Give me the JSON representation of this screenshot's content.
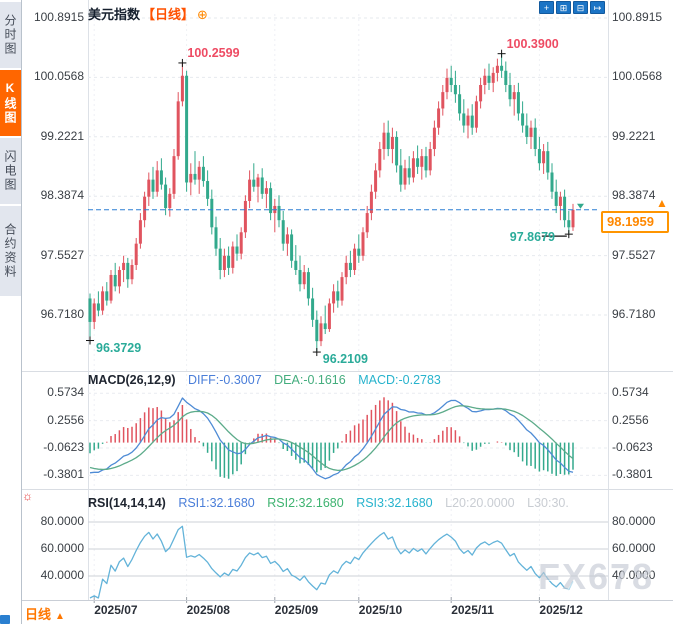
{
  "sidebar": {
    "tabs": [
      {
        "label": "分时图",
        "active": false
      },
      {
        "label": "K线图",
        "active": true
      },
      {
        "label": "闪电图",
        "active": false
      },
      {
        "label": "合约资料",
        "active": false
      }
    ]
  },
  "header": {
    "title": "美元指数",
    "period_tag": "【日线】",
    "add_icon": "⊕"
  },
  "toolbar": {
    "buttons": [
      {
        "name": "crosshair",
        "glyph": "+"
      },
      {
        "name": "zoom-in",
        "glyph": "⊞"
      },
      {
        "name": "zoom-out",
        "glyph": "⊟"
      },
      {
        "name": "exit",
        "glyph": "↦"
      }
    ]
  },
  "price_box": {
    "value": "98.1959"
  },
  "price_arrow": "▲",
  "alert_icon": "☼",
  "bottom_bar": {
    "period_label": "日线",
    "arrow": "▲"
  },
  "watermark": "FX678",
  "macd_header": {
    "name": "MACD(26,12,9)",
    "diff": "DIFF:-0.3007",
    "dea": "DEA:-0.1616",
    "macd": "MACD:-0.2783"
  },
  "rsi_header": {
    "name": "RSI(14,14,14)",
    "rsi1": "RSI1:32.1680",
    "rsi2": "RSI2:32.1680",
    "rsi3": "RSI3:32.1680",
    "l20": "L20:20.0000",
    "l30": "L30:30."
  },
  "chart_data": {
    "type": "candlestick",
    "title": "美元指数 日线",
    "price_axis_labels": [
      "100.8915",
      "100.0568",
      "99.2221",
      "98.3874",
      "97.5527",
      "96.7180"
    ],
    "macd_axis_labels": [
      "0.5734",
      "0.2556",
      "-0.0623",
      "-0.3801"
    ],
    "rsi_axis_labels": [
      "80.0000",
      "60.0000",
      "40.0000"
    ],
    "x_ticks": [
      {
        "label": "2025/07",
        "day": 1
      },
      {
        "label": "2025/08",
        "day": 23
      },
      {
        "label": "2025/09",
        "day": 44
      },
      {
        "label": "2025/10",
        "day": 64
      },
      {
        "label": "2025/11",
        "day": 86
      },
      {
        "label": "2025/12",
        "day": 107
      }
    ],
    "current_price": 98.1959,
    "annotations": [
      {
        "text": "100.2599",
        "day": 22,
        "price": 100.2599,
        "kind": "high"
      },
      {
        "text": "100.3900",
        "day": 98,
        "price": 100.39,
        "kind": "high"
      },
      {
        "text": "96.3729",
        "day": 0,
        "price": 96.3729,
        "kind": "low"
      },
      {
        "text": "96.2109",
        "day": 54,
        "price": 96.2109,
        "kind": "low"
      },
      {
        "text": "97.8679",
        "day": 114,
        "price": 97.8679,
        "kind": "low-line"
      }
    ],
    "colors": {
      "up": "#e0545f",
      "down": "#32a98c",
      "current_line": "#2b7fd4",
      "diff_line": "#4e8bd5",
      "dea_line": "#5cab8a",
      "rsi_line": "#63b3d9",
      "hist_pos": "#e0545f",
      "hist_neg": "#32a98c",
      "marker": "#111111"
    },
    "warmup_closes": [
      98.3,
      98.22,
      98.1,
      98.05,
      97.92,
      97.85,
      97.8,
      97.68,
      97.6,
      97.52,
      97.45,
      97.38,
      97.3,
      97.25,
      97.18,
      97.1,
      97.05,
      96.98,
      96.93,
      96.9
    ],
    "candles": [
      [
        96.95,
        97.02,
        96.3729,
        96.62
      ],
      [
        96.62,
        96.95,
        96.52,
        96.88
      ],
      [
        96.88,
        97.05,
        96.7,
        96.78
      ],
      [
        96.78,
        97.12,
        96.72,
        97.05
      ],
      [
        97.05,
        97.18,
        96.85,
        96.92
      ],
      [
        96.92,
        97.35,
        96.88,
        97.28
      ],
      [
        97.28,
        97.45,
        97.05,
        97.12
      ],
      [
        97.12,
        97.4,
        97.02,
        97.35
      ],
      [
        97.35,
        97.55,
        97.18,
        97.45
      ],
      [
        97.45,
        97.52,
        97.1,
        97.22
      ],
      [
        97.22,
        97.5,
        97.15,
        97.42
      ],
      [
        97.42,
        97.8,
        97.35,
        97.72
      ],
      [
        97.72,
        98.15,
        97.65,
        98.05
      ],
      [
        98.05,
        98.45,
        97.95,
        98.38
      ],
      [
        98.38,
        98.72,
        98.25,
        98.62
      ],
      [
        98.62,
        98.8,
        98.35,
        98.45
      ],
      [
        98.45,
        98.88,
        98.38,
        98.75
      ],
      [
        98.75,
        98.92,
        98.48,
        98.55
      ],
      [
        98.55,
        98.65,
        98.12,
        98.22
      ],
      [
        98.22,
        98.5,
        98.1,
        98.42
      ],
      [
        98.42,
        99.05,
        98.35,
        98.95
      ],
      [
        98.95,
        99.85,
        98.9,
        99.72
      ],
      [
        99.72,
        100.2599,
        99.65,
        100.08
      ],
      [
        100.08,
        100.15,
        98.45,
        98.58
      ],
      [
        98.58,
        98.85,
        98.4,
        98.7
      ],
      [
        98.7,
        99.02,
        98.55,
        98.62
      ],
      [
        98.62,
        98.88,
        98.42,
        98.8
      ],
      [
        98.8,
        98.95,
        98.52,
        98.6
      ],
      [
        98.6,
        98.75,
        98.25,
        98.35
      ],
      [
        98.35,
        98.48,
        97.85,
        97.95
      ],
      [
        97.95,
        98.1,
        97.55,
        97.65
      ],
      [
        97.65,
        97.8,
        97.22,
        97.35
      ],
      [
        97.35,
        97.65,
        97.25,
        97.55
      ],
      [
        97.55,
        97.68,
        97.28,
        97.38
      ],
      [
        97.38,
        97.75,
        97.3,
        97.68
      ],
      [
        97.68,
        97.85,
        97.48,
        97.58
      ],
      [
        97.58,
        97.95,
        97.5,
        97.88
      ],
      [
        97.88,
        98.4,
        97.8,
        98.32
      ],
      [
        98.32,
        98.75,
        98.22,
        98.62
      ],
      [
        98.62,
        98.85,
        98.45,
        98.52
      ],
      [
        98.52,
        98.7,
        98.3,
        98.65
      ],
      [
        98.65,
        98.78,
        98.35,
        98.42
      ],
      [
        98.42,
        98.6,
        98.22,
        98.5
      ],
      [
        98.5,
        98.58,
        98.05,
        98.15
      ],
      [
        98.15,
        98.35,
        97.88,
        98.25
      ],
      [
        98.25,
        98.4,
        97.95,
        98.05
      ],
      [
        98.05,
        98.18,
        97.62,
        97.72
      ],
      [
        97.72,
        97.95,
        97.55,
        97.85
      ],
      [
        97.85,
        97.92,
        97.38,
        97.48
      ],
      [
        97.48,
        97.7,
        97.28,
        97.35
      ],
      [
        97.35,
        97.55,
        97.05,
        97.15
      ],
      [
        97.15,
        97.42,
        97.08,
        97.32
      ],
      [
        97.32,
        97.38,
        96.85,
        96.95
      ],
      [
        96.95,
        97.1,
        96.55,
        96.65
      ],
      [
        96.65,
        96.78,
        96.2109,
        96.35
      ],
      [
        96.35,
        96.7,
        96.28,
        96.6
      ],
      [
        96.6,
        96.85,
        96.45,
        96.52
      ],
      [
        96.52,
        96.95,
        96.48,
        96.88
      ],
      [
        96.88,
        97.15,
        96.75,
        97.05
      ],
      [
        97.05,
        97.2,
        96.82,
        96.92
      ],
      [
        96.92,
        97.32,
        96.85,
        97.25
      ],
      [
        97.25,
        97.55,
        97.15,
        97.45
      ],
      [
        97.45,
        97.62,
        97.25,
        97.35
      ],
      [
        97.35,
        97.72,
        97.28,
        97.65
      ],
      [
        97.65,
        97.85,
        97.45,
        97.55
      ],
      [
        97.55,
        97.95,
        97.48,
        97.88
      ],
      [
        97.88,
        98.25,
        97.8,
        98.15
      ],
      [
        98.15,
        98.55,
        98.05,
        98.45
      ],
      [
        98.45,
        98.85,
        98.35,
        98.75
      ],
      [
        98.75,
        99.15,
        98.65,
        99.05
      ],
      [
        99.05,
        99.42,
        98.9,
        99.28
      ],
      [
        99.28,
        99.45,
        98.95,
        99.05
      ],
      [
        99.05,
        99.35,
        98.85,
        99.22
      ],
      [
        99.22,
        99.3,
        98.72,
        98.82
      ],
      [
        98.82,
        99.05,
        98.45,
        98.55
      ],
      [
        98.55,
        98.9,
        98.48,
        98.78
      ],
      [
        98.78,
        98.95,
        98.55,
        98.65
      ],
      [
        98.65,
        99.02,
        98.58,
        98.92
      ],
      [
        98.92,
        99.1,
        98.7,
        98.8
      ],
      [
        98.8,
        99.05,
        98.62,
        98.95
      ],
      [
        98.95,
        99.08,
        98.65,
        98.75
      ],
      [
        98.75,
        99.15,
        98.68,
        99.05
      ],
      [
        99.05,
        99.45,
        98.95,
        99.35
      ],
      [
        99.35,
        99.72,
        99.25,
        99.62
      ],
      [
        99.62,
        99.95,
        99.52,
        99.85
      ],
      [
        99.85,
        100.18,
        99.75,
        100.05
      ],
      [
        100.05,
        100.22,
        99.85,
        99.95
      ],
      [
        99.95,
        100.15,
        99.7,
        99.82
      ],
      [
        99.82,
        99.95,
        99.45,
        99.55
      ],
      [
        99.55,
        99.75,
        99.28,
        99.38
      ],
      [
        99.38,
        99.62,
        99.2,
        99.52
      ],
      [
        99.52,
        99.68,
        99.25,
        99.35
      ],
      [
        99.35,
        99.8,
        99.28,
        99.72
      ],
      [
        99.72,
        100.05,
        99.62,
        99.95
      ],
      [
        99.95,
        100.18,
        99.82,
        100.08
      ],
      [
        100.08,
        100.25,
        99.88,
        99.98
      ],
      [
        99.98,
        100.2,
        99.85,
        100.12
      ],
      [
        100.12,
        100.32,
        100.0,
        100.22
      ],
      [
        100.22,
        100.39,
        100.05,
        100.15
      ],
      [
        100.15,
        100.28,
        99.85,
        99.95
      ],
      [
        99.95,
        100.12,
        99.65,
        99.75
      ],
      [
        99.75,
        99.95,
        99.52,
        99.85
      ],
      [
        99.85,
        99.98,
        99.45,
        99.55
      ],
      [
        99.55,
        99.72,
        99.28,
        99.38
      ],
      [
        99.38,
        99.55,
        99.12,
        99.22
      ],
      [
        99.22,
        99.45,
        99.05,
        99.35
      ],
      [
        99.35,
        99.48,
        98.95,
        99.05
      ],
      [
        99.05,
        99.22,
        98.75,
        98.85
      ],
      [
        98.85,
        99.12,
        98.7,
        99.02
      ],
      [
        99.02,
        99.15,
        98.62,
        98.72
      ],
      [
        98.72,
        98.85,
        98.35,
        98.45
      ],
      [
        98.45,
        98.62,
        98.15,
        98.25
      ],
      [
        98.25,
        98.45,
        98.05,
        98.38
      ],
      [
        98.38,
        98.48,
        97.95,
        98.05
      ],
      [
        98.05,
        98.18,
        97.8679,
        97.95
      ],
      [
        97.95,
        98.28,
        97.9,
        98.1959
      ]
    ]
  }
}
